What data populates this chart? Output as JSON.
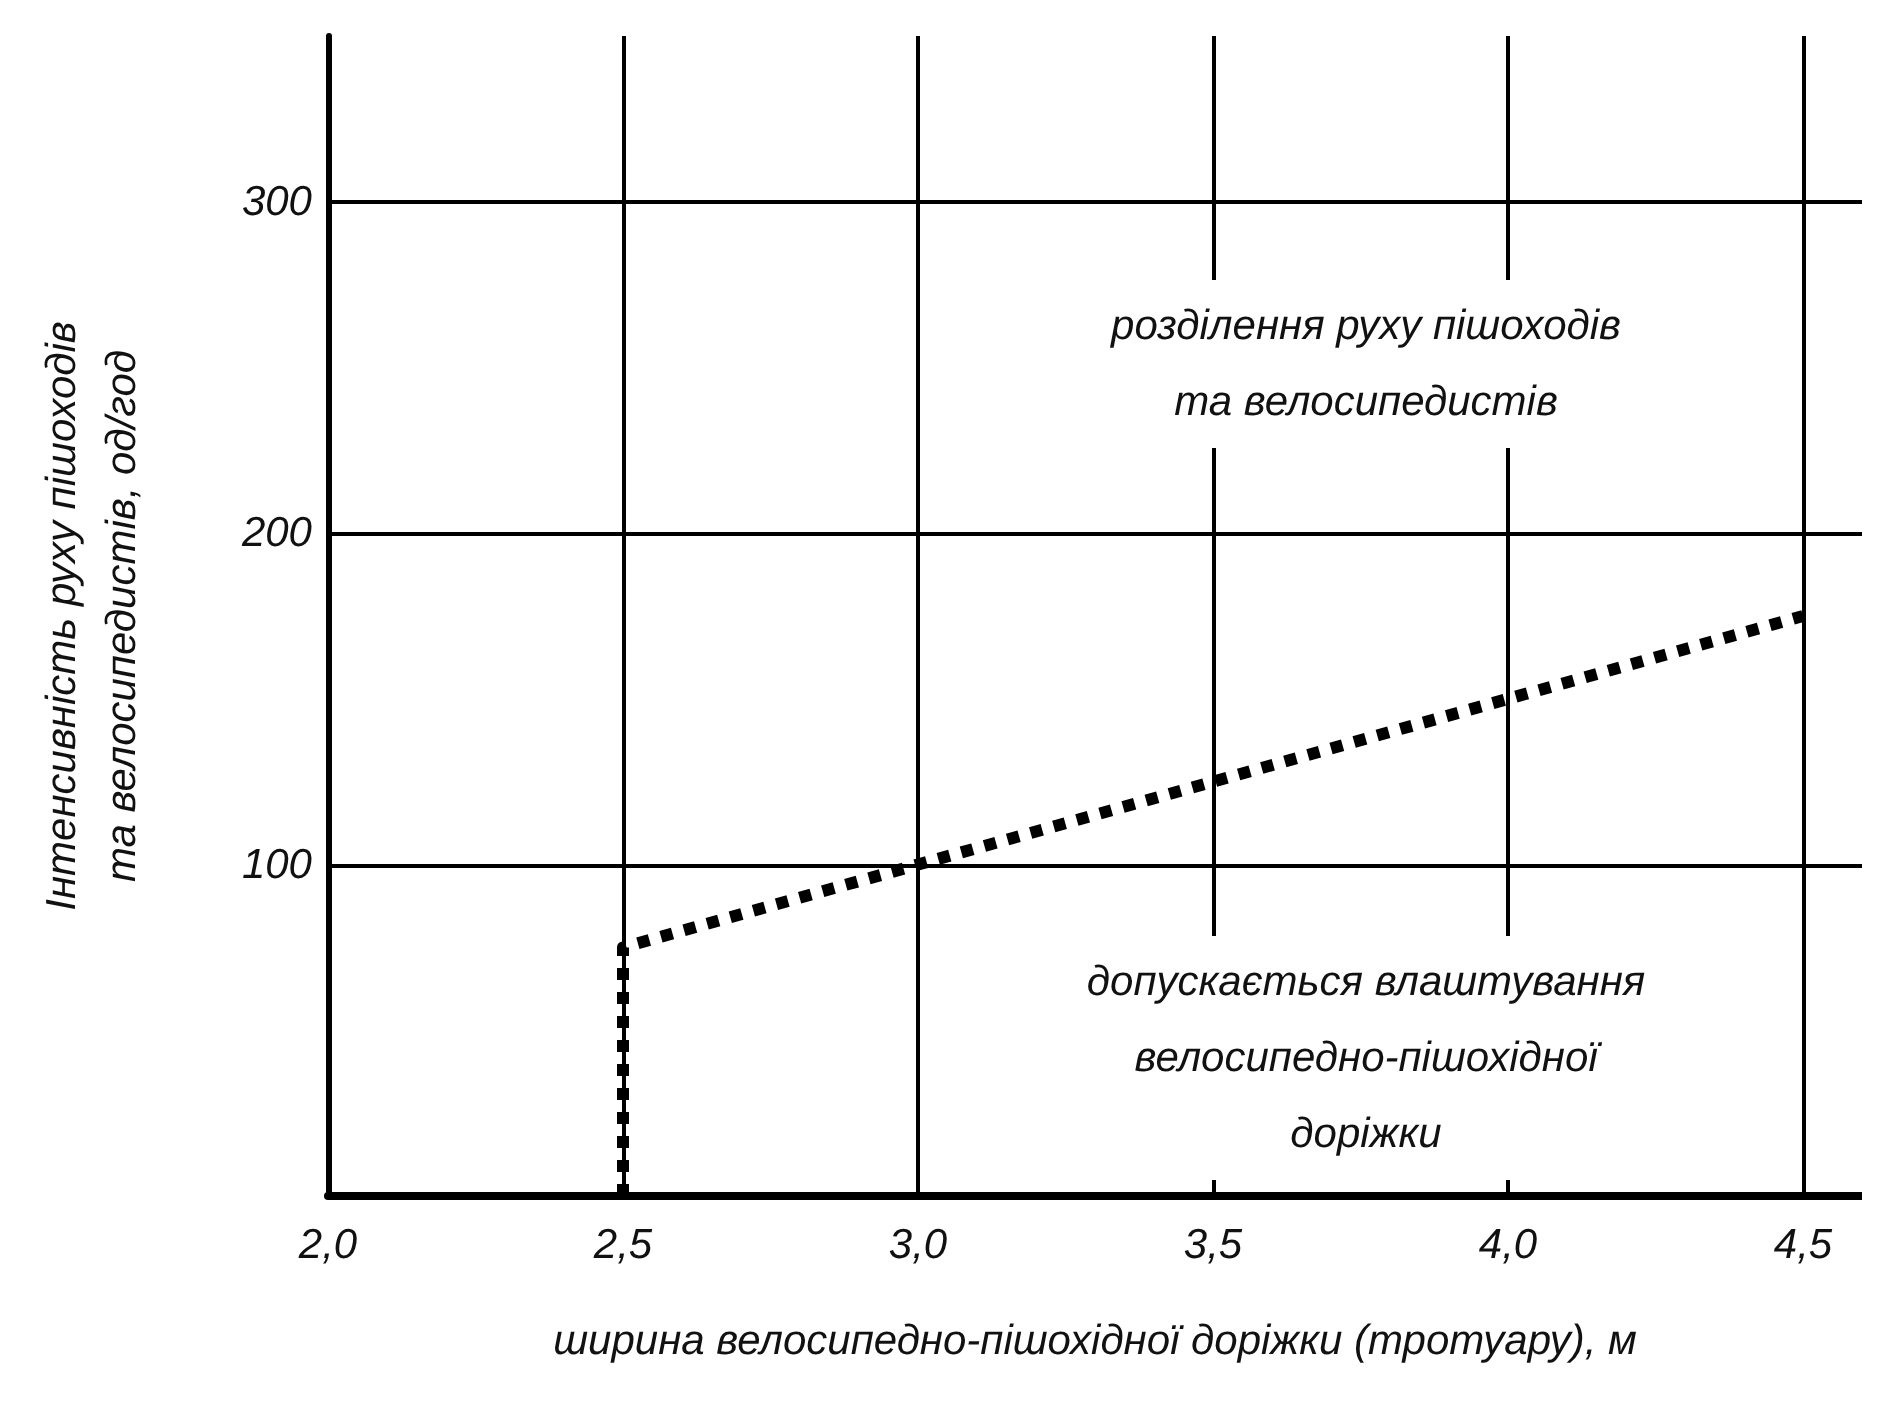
{
  "chart_data": {
    "type": "line",
    "xlabel": "ширина велосипедно-пішохідної доріжки (тротуару), м",
    "ylabel": "Інтенсивність руху пішоходів\nта велосипедистів, од/год",
    "x": [
      2.5,
      2.5,
      3.0,
      3.5,
      4.0,
      4.5
    ],
    "series": [
      {
        "color": "#000000",
        "values": [
          0,
          75,
          100,
          125,
          150,
          175
        ]
      }
    ],
    "line_style": "dashed",
    "xlim": [
      2.0,
      4.6
    ],
    "xticks": [
      {
        "value": 2.0,
        "label": "2,0"
      },
      {
        "value": 2.5,
        "label": "2,5"
      },
      {
        "value": 3.0,
        "label": "3,0"
      },
      {
        "value": 3.5,
        "label": "3,5"
      },
      {
        "value": 4.0,
        "label": "4,0"
      },
      {
        "value": 4.5,
        "label": "4,5"
      }
    ],
    "ylim": [
      0,
      350
    ],
    "yticks": [
      100,
      200,
      300
    ],
    "grid": true,
    "annotations": [
      "розділення руху пішоходів\nта велосипедистів",
      "допускається влаштування\nвелосипедно-пішохідної\nдоріжки"
    ]
  }
}
